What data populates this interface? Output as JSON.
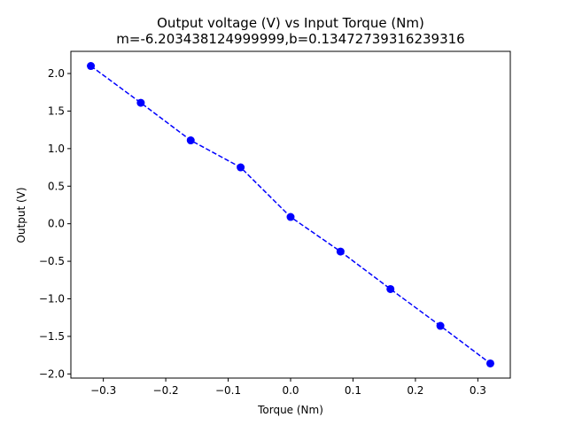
{
  "chart_data": {
    "type": "line",
    "title": "Output voltage (V) vs Input Torque (Nm)",
    "subtitle": "m=-6.203438124999999,b=0.13472739316239316",
    "xlabel": "Torque (Nm)",
    "ylabel": "Output (V)",
    "xlim": [
      -0.352,
      0.352
    ],
    "ylim": [
      -2.055,
      2.295
    ],
    "grid": false,
    "line_style": "dashed",
    "marker": "circle",
    "color": "#0000ff",
    "xticks": [
      -0.3,
      -0.2,
      -0.1,
      0.0,
      0.1,
      0.2,
      0.3
    ],
    "xtick_labels": [
      "−0.3",
      "−0.2",
      "−0.1",
      "0.0",
      "0.1",
      "0.2",
      "0.3"
    ],
    "yticks": [
      2.0,
      1.5,
      1.0,
      0.5,
      0.0,
      -0.5,
      -1.0,
      -1.5,
      -2.0
    ],
    "ytick_labels": [
      "2.0",
      "1.5",
      "1.0",
      "0.5",
      "0.0",
      "−0.5",
      "−1.0",
      "−1.5",
      "−2.0"
    ],
    "series": [
      {
        "x": [
          -0.32,
          -0.24,
          -0.16,
          -0.08,
          0.0,
          0.08,
          0.16,
          0.24,
          0.32
        ],
        "values": [
          2.1,
          1.61,
          1.11,
          0.75,
          0.09,
          -0.37,
          -0.87,
          -1.36,
          -1.86
        ]
      }
    ]
  }
}
